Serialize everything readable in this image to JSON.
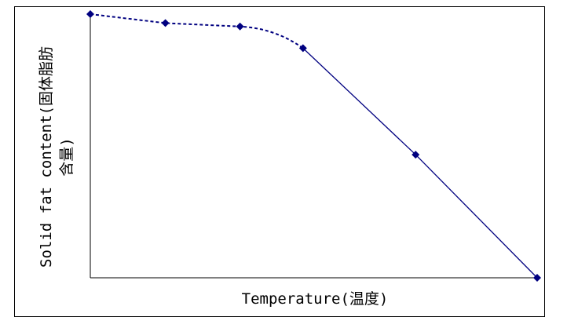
{
  "chart_data": {
    "type": "line",
    "title": "",
    "xlabel": "Temperature(温度)",
    "ylabel": "Solid fat content(固体脂肪含量)",
    "ylabel_lines": [
      "Solid fat content(固体脂肪",
      "含量)"
    ],
    "xlim": [
      0,
      100
    ],
    "ylim": [
      0,
      100
    ],
    "grid": false,
    "legend": "none",
    "series": [
      {
        "style": "dashed",
        "x": [
          0,
          16.8,
          33.5,
          47.6
        ],
        "y": [
          100,
          96.6,
          95.3,
          87.1
        ]
      },
      {
        "style": "solid",
        "x": [
          47.6,
          72.8,
          100
        ],
        "y": [
          87.1,
          46.7,
          0
        ]
      }
    ],
    "colors": {
      "line": "#000080",
      "marker": "#000080",
      "axis": "#000000",
      "frame": "#000000"
    }
  }
}
